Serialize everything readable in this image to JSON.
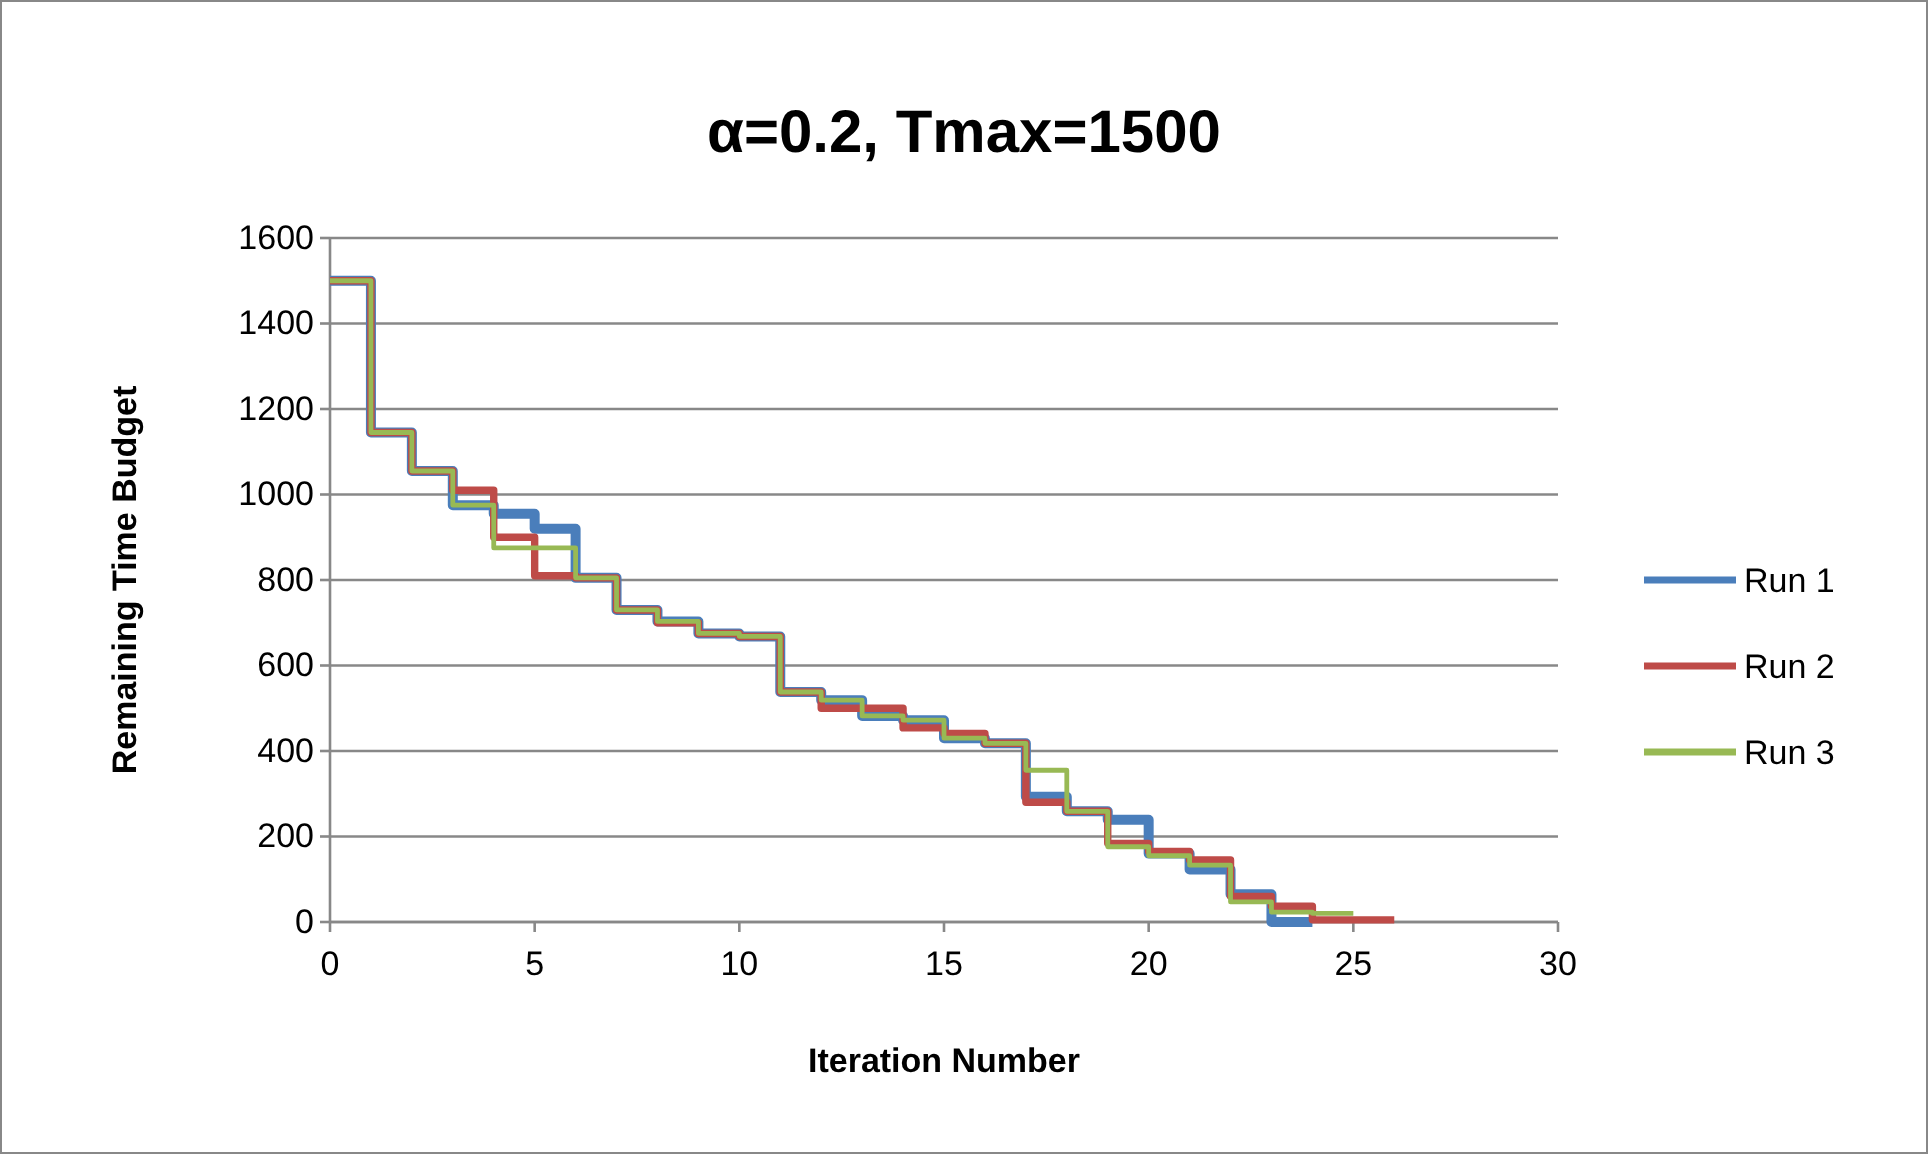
{
  "chart_data": {
    "type": "step",
    "title": "α=0.2, Tmax=1500",
    "xlabel": "Iteration Number",
    "ylabel": "Remaining Time Budget",
    "xlim": [
      0,
      30
    ],
    "xticks": [
      0,
      5,
      10,
      15,
      20,
      25,
      30
    ],
    "ylim": [
      0,
      1600
    ],
    "yticks": [
      0,
      200,
      400,
      600,
      800,
      1000,
      1200,
      1400,
      1600
    ],
    "grid": "y",
    "legend": "right",
    "series": [
      {
        "name": "Run 1",
        "color": "#4a7ebb",
        "x": [
          0,
          1,
          2,
          3,
          4,
          5,
          6,
          7,
          8,
          9,
          10,
          11,
          12,
          13,
          14,
          15,
          16,
          17,
          18,
          19,
          20,
          21,
          22,
          23,
          24
        ],
        "values": [
          1500,
          1145,
          1055,
          975,
          955,
          920,
          805,
          730,
          703,
          675,
          668,
          538,
          519,
          482,
          472,
          430,
          418,
          293,
          259,
          239,
          160,
          123,
          65,
          0,
          0
        ]
      },
      {
        "name": "Run 2",
        "color": "#be4b48",
        "x": [
          0,
          1,
          2,
          3,
          4,
          5,
          6,
          7,
          8,
          9,
          10,
          11,
          12,
          13,
          14,
          15,
          16,
          17,
          18,
          19,
          20,
          21,
          22,
          23,
          24,
          25,
          26
        ],
        "values": [
          1500,
          1145,
          1055,
          1010,
          900,
          810,
          805,
          730,
          700,
          675,
          668,
          538,
          500,
          500,
          454,
          441,
          418,
          280,
          259,
          184,
          165,
          145,
          60,
          37,
          5,
          5,
          5
        ]
      },
      {
        "name": "Run 3",
        "color": "#98b954",
        "x": [
          0,
          1,
          2,
          3,
          4,
          5,
          6,
          7,
          8,
          9,
          10,
          11,
          12,
          13,
          14,
          15,
          16,
          17,
          18,
          19,
          20,
          21,
          22,
          23,
          24,
          25
        ],
        "values": [
          1500,
          1145,
          1055,
          975,
          875,
          875,
          805,
          730,
          703,
          675,
          668,
          538,
          519,
          482,
          472,
          430,
          418,
          355,
          259,
          176,
          155,
          133,
          47,
          23,
          20,
          20
        ]
      }
    ]
  }
}
